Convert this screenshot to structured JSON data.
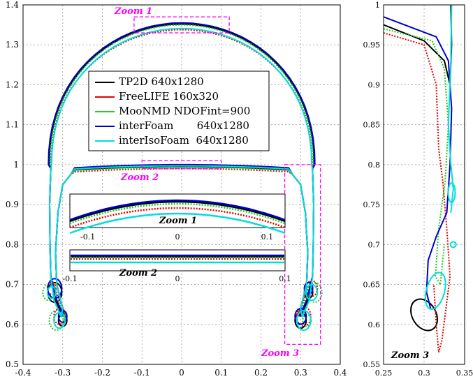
{
  "chart_data": [
    {
      "type": "line",
      "title": "",
      "xlabel": "",
      "ylabel": "",
      "xlim": [
        -0.4,
        0.4
      ],
      "ylim": [
        0.5,
        1.4
      ],
      "grid": true,
      "legend_position": "upper-center",
      "xticks": [
        "-0.4",
        "-0.3",
        "-0.2",
        "-0.1",
        "0",
        "0.1",
        "0.2",
        "0.3",
        "0.4"
      ],
      "yticks": [
        "0.5",
        "0.6",
        "0.7",
        "0.8",
        "0.9",
        "1",
        "1.1",
        "1.2",
        "1.3",
        "1.4"
      ],
      "series": [
        {
          "name": "TP2D 640x1280",
          "color": "#000000",
          "style": "solid",
          "top_y": 1.352,
          "inner_y": 0.995
        },
        {
          "name": "FreeLIFE 160x320",
          "color": "#e60000",
          "style": "dotted",
          "top_y": 1.338,
          "inner_y": 0.99
        },
        {
          "name": "MooNMD NDOFint=900",
          "color": "#22cc22",
          "style": "dotted",
          "top_y": 1.35,
          "inner_y": 0.993
        },
        {
          "name": "interFoam       640x1280",
          "color": "#0000cc",
          "style": "solid",
          "top_y": 1.355,
          "inner_y": 1.0
        },
        {
          "name": "interIsoFoam  640x1280",
          "color": "#00dddd",
          "style": "solid",
          "top_y": 1.341,
          "inner_y": 0.997
        }
      ],
      "annotations": [
        "Zoom 1",
        "Zoom 2",
        "Zoom 3"
      ],
      "insets": [
        {
          "label": "Zoom 1",
          "xticks": [
            "-0.1",
            "0",
            "0.1"
          ]
        },
        {
          "label": "Zoom 2",
          "xticks": [
            "-0.1",
            "0",
            "0.1"
          ]
        }
      ]
    },
    {
      "type": "line",
      "title": "",
      "xlabel": "",
      "ylabel": "",
      "xlim": [
        0.25,
        0.35
      ],
      "ylim": [
        0.55,
        1.0
      ],
      "grid": true,
      "xticks": [
        "0.25",
        "0.3",
        "0.35"
      ],
      "yticks": [
        "0.55",
        "0.6",
        "0.65",
        "0.7",
        "0.75",
        "0.8",
        "0.85",
        "0.9",
        "0.95",
        "1"
      ],
      "annotation": "Zoom 3"
    }
  ],
  "colors": {
    "zoom_box": "#ff00ff",
    "zoom_label": "#ff00ff",
    "grid": "#999999"
  }
}
